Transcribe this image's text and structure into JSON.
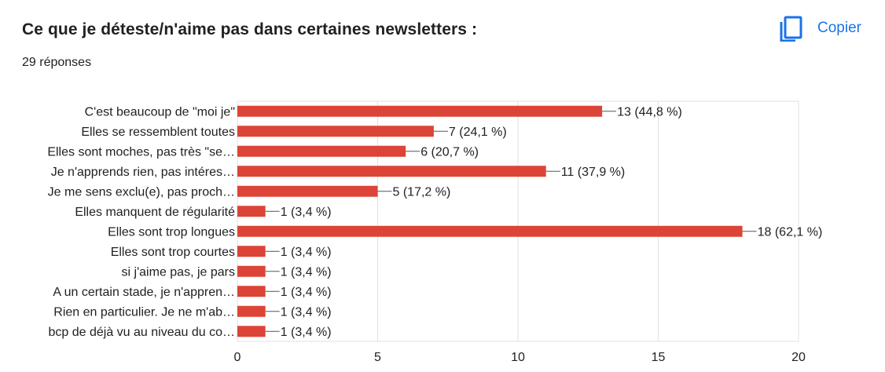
{
  "header": {
    "title": "Ce que je déteste/n'aime pas dans certaines newsletters :",
    "responses": "29 réponses",
    "copy_label": "Copier",
    "copy_icon": "copy-icon"
  },
  "colors": {
    "bar": "#dc4437",
    "accent": "#1a73e8",
    "grid": "#e0e0e0",
    "text": "#202124"
  },
  "chart_data": {
    "type": "bar",
    "orientation": "horizontal",
    "categories": [
      "C'est beaucoup de \"moi je\"",
      "Elles se ressemblent toutes",
      "Elles sont moches, pas très \"se…",
      "Je n'apprends rien, pas intéres…",
      "Je me sens exclu(e), pas proch…",
      "Elles manquent de régularité",
      "Elles sont trop longues",
      "Elles sont trop courtes",
      "si j'aime pas, je pars",
      "A un certain stade, je n'appren…",
      "Rien en particulier. Je ne m'ab…",
      "bcp de déjà vu au niveau du co…"
    ],
    "values": [
      13,
      7,
      6,
      11,
      5,
      1,
      18,
      1,
      1,
      1,
      1,
      1
    ],
    "data_labels": [
      "13 (44,8 %)",
      "7 (24,1 %)",
      "6 (20,7 %)",
      "11 (37,9 %)",
      "5 (17,2 %)",
      "1 (3,4 %)",
      "18 (62,1 %)",
      "1 (3,4 %)",
      "1 (3,4 %)",
      "1 (3,4 %)",
      "1 (3,4 %)",
      "1 (3,4 %)"
    ],
    "xlim": [
      0,
      20
    ],
    "xticks": [
      0,
      5,
      10,
      15,
      20
    ],
    "grid": true
  }
}
